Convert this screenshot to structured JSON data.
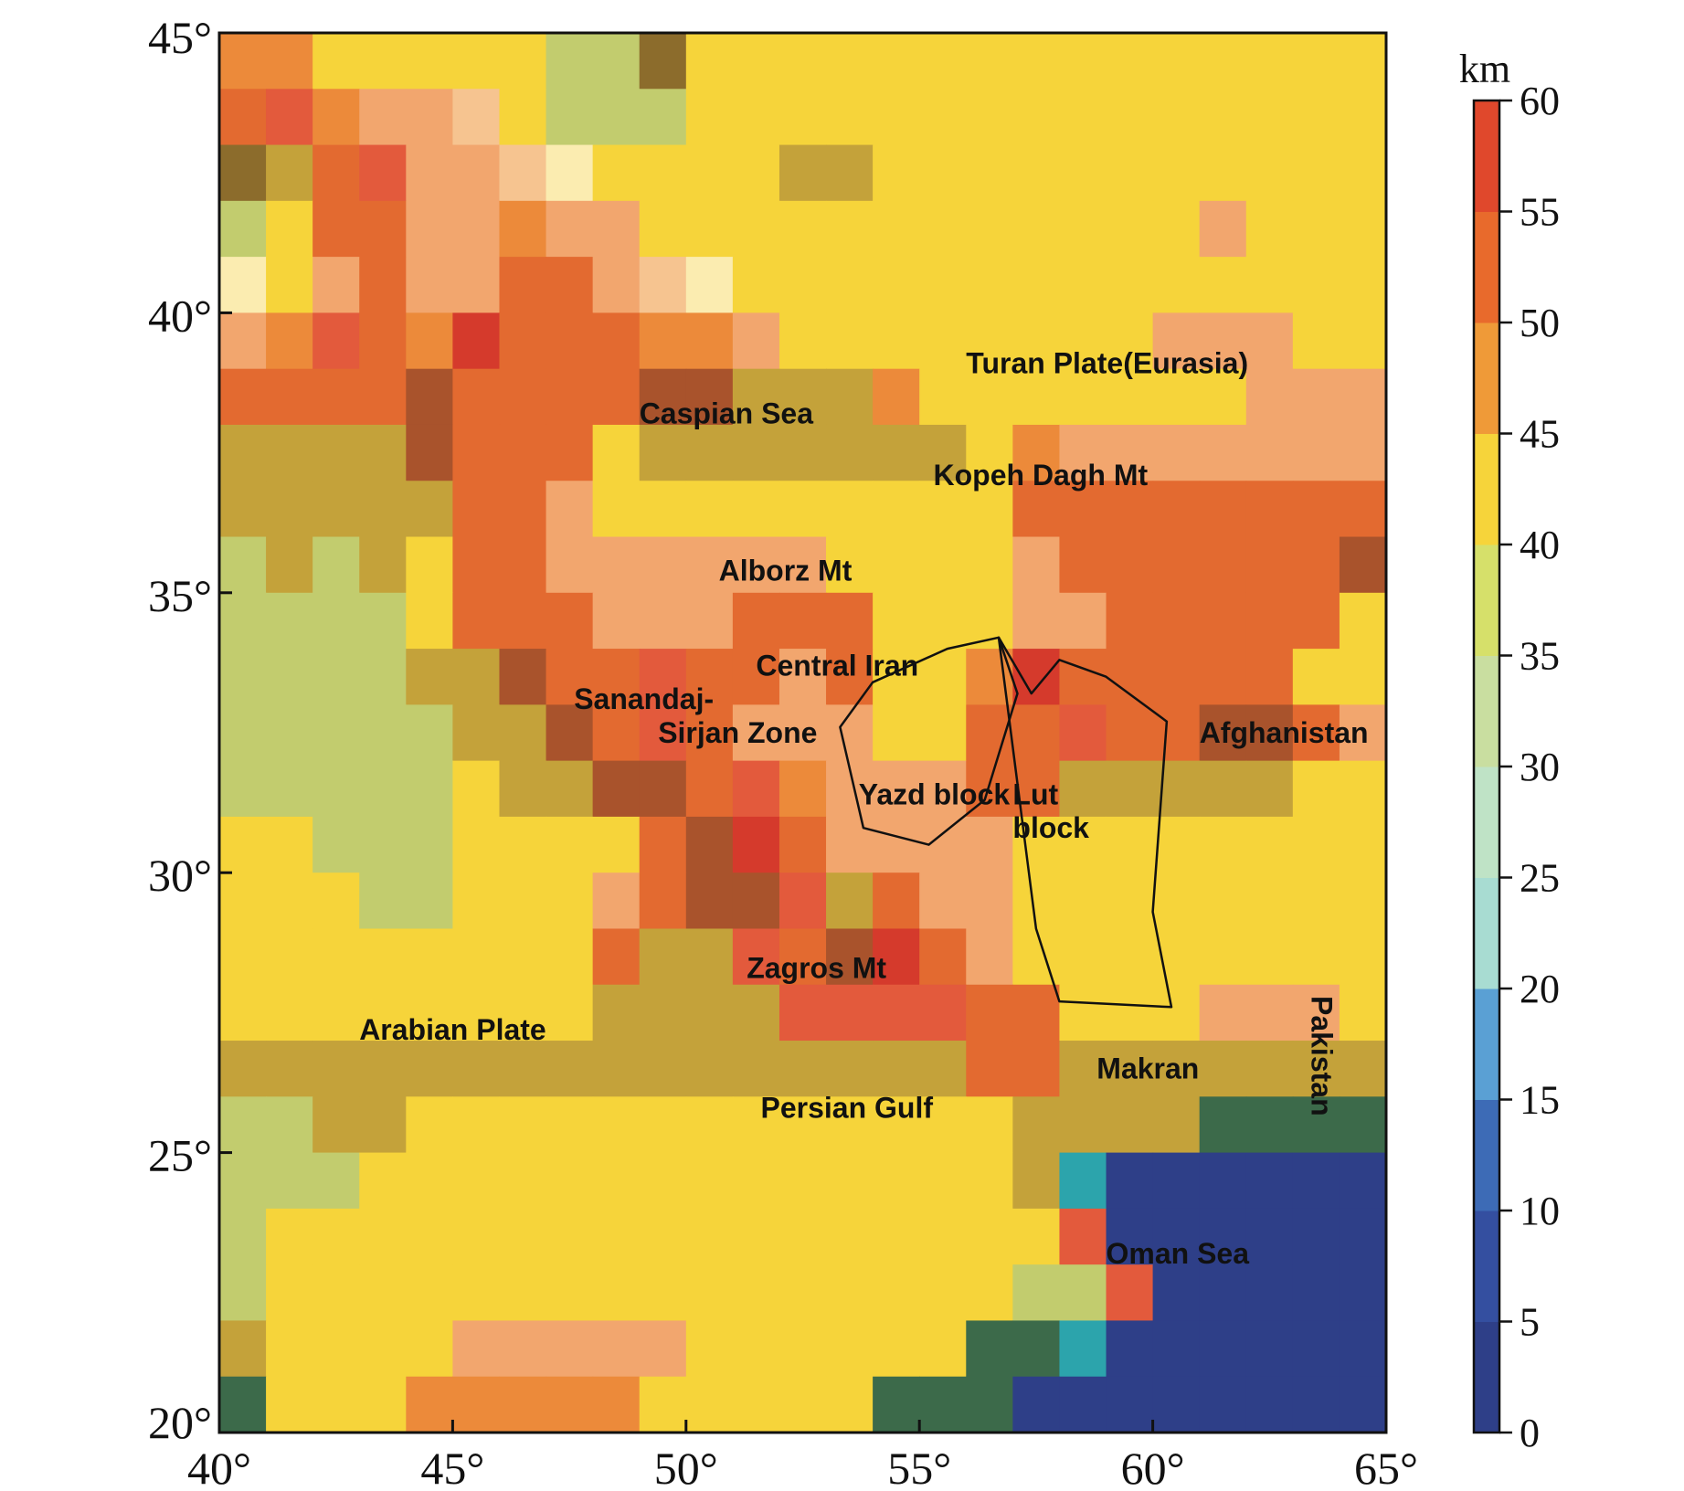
{
  "map": {
    "lon_range": [
      40,
      65
    ],
    "lat_range": [
      20,
      45
    ],
    "cell_deg": 1,
    "x_ticks": [
      {
        "value": 40,
        "label": "40°"
      },
      {
        "value": 45,
        "label": "45°"
      },
      {
        "value": 50,
        "label": "50°"
      },
      {
        "value": 55,
        "label": "55°"
      },
      {
        "value": 60,
        "label": "60°"
      },
      {
        "value": 65,
        "label": "65°"
      }
    ],
    "y_ticks": [
      {
        "value": 45,
        "label": "45°"
      },
      {
        "value": 40,
        "label": "40°"
      },
      {
        "value": 35,
        "label": "35°"
      },
      {
        "value": 30,
        "label": "30°"
      },
      {
        "value": 25,
        "label": "25°"
      },
      {
        "value": 20,
        "label": "20°"
      }
    ],
    "grid_rows_north_to_south": [
      "OOYYYYYGGBYYYYYYYYYYYYYYY",
      "RLOPPSYGGGYYYYYYYYYYYYYYY",
      "BDRLPPSWYYYYDDYYYYYYYYYYY",
      "GYRRPPOPPYYYYYYYYYYYYPYYY",
      "WYPRPPRRPSWYYYYYYYYYYYYYY",
      "POLROERRROOPYYYYYYYYPPPYY",
      "RRRRMRRRRMMDDDOYYYYYYYPPP",
      "DDDDMRRRYDDDDDDDYOPPPPPPP",
      "DDDDDRRPYYYYYYYYYRRRRRRRR",
      "GDGDYRRPPPPPPYYYYPRRRRRRM",
      "GGGGYRRRPPPRRRYYYPPRRRRRY",
      "GGGGDDMRRLRRPRYYOERRRRRYY",
      "GGGGGDDMRLRPPPYYRRLRRMMRP",
      "GGGGGYDDMMRLOPPPRRDDDDDYY",
      "YYGGGYYYYRMERPPPPYYYYYYYY",
      "YYYGGYYYPRMMLDRPPYYYYYYYY",
      "YYYYYYYYRDDLRMERPYYYYYYYY",
      "YYYYYYYYDDDDLLLLRRYYYPPPY",
      "DDDDDDDDDDDDDDDDRRDDDDDDD",
      "GGDDYYYYYYYYYYYYYDDDDCCCC",
      "GGGYYYYYYYYYYYYYYDTNNNNNN",
      "GYYYYYYYYYYYYYYYYYLNNNNNN",
      "GYYYYYYYYYYYYYYYYGGLNNNNN",
      "DYYYYPPPPPYYYYYYCCTNNNNNN",
      "CYYYOOOOOYYYYYCCCNNNNNNNN"
    ],
    "cell_palette": {
      "Y": "#f6d43a",
      "O": "#ec8a3a",
      "R": "#e36a30",
      "P": "#f2a66e",
      "S": "#f6c490",
      "W": "#fbecb0",
      "G": "#c2cc6e",
      "D": "#c4a23a",
      "B": "#8c6c2c",
      "M": "#a9532c",
      "L": "#e35a3c",
      "E": "#d53a2c",
      "C": "#3c6a4a",
      "T": "#2ca4ac",
      "N": "#2e3f88"
    },
    "polygons": [
      [
        [
          53.3,
          32.6
        ],
        [
          54.0,
          33.4
        ],
        [
          55.6,
          34.0
        ],
        [
          56.7,
          34.2
        ],
        [
          57.1,
          33.2
        ],
        [
          56.4,
          31.3
        ],
        [
          55.2,
          30.5
        ],
        [
          53.8,
          30.8
        ]
      ],
      [
        [
          56.7,
          34.2
        ],
        [
          57.4,
          33.2
        ],
        [
          58.0,
          33.8
        ],
        [
          59.0,
          33.5
        ],
        [
          60.3,
          32.7
        ],
        [
          60.0,
          29.3
        ],
        [
          60.4,
          27.6
        ],
        [
          58.0,
          27.7
        ],
        [
          57.5,
          29.0
        ]
      ]
    ],
    "labels": [
      {
        "text": "Turan Plate(Eurasia)",
        "lon": 56.0,
        "lat": 39.1
      },
      {
        "text": "Caspian Sea",
        "lon": 49.0,
        "lat": 38.2
      },
      {
        "text": "Kopeh Dagh Mt",
        "lon": 55.3,
        "lat": 37.1
      },
      {
        "text": "Alborz Mt",
        "lon": 50.7,
        "lat": 35.4
      },
      {
        "text": "Central Iran",
        "lon": 51.5,
        "lat": 33.7
      },
      {
        "text": "Sanandaj-",
        "lon": 47.6,
        "lat": 33.1
      },
      {
        "text": "Sirjan Zone",
        "lon": 49.4,
        "lat": 32.5
      },
      {
        "text": "Yazd block",
        "lon": 53.7,
        "lat": 31.4
      },
      {
        "text": "Lut",
        "lon": 57.0,
        "lat": 31.4
      },
      {
        "text": "block",
        "lon": 57.0,
        "lat": 30.8
      },
      {
        "text": "Afghanistan",
        "lon": 61.0,
        "lat": 32.5
      },
      {
        "text": "Zagros Mt",
        "lon": 51.3,
        "lat": 28.3
      },
      {
        "text": "Arabian Plate",
        "lon": 43.0,
        "lat": 27.2
      },
      {
        "text": "Makran",
        "lon": 58.8,
        "lat": 26.5
      },
      {
        "text": "Persian Gulf",
        "lon": 51.6,
        "lat": 25.8
      },
      {
        "text": "Oman Sea",
        "lon": 59.0,
        "lat": 23.2
      }
    ],
    "rotated_labels": [
      {
        "text": "Pakistan",
        "lon": 63.4,
        "lat": 27.8
      }
    ]
  },
  "colorbar": {
    "unit": "km",
    "min": 0,
    "max": 60,
    "ticks": [
      "0",
      "5",
      "10",
      "15",
      "20",
      "25",
      "30",
      "35",
      "40",
      "45",
      "50",
      "55",
      "60"
    ],
    "bins": [
      {
        "from": 0,
        "to": 5,
        "color": "#2e3f88"
      },
      {
        "from": 5,
        "to": 10,
        "color": "#344fa0"
      },
      {
        "from": 10,
        "to": 15,
        "color": "#3d6bb6"
      },
      {
        "from": 15,
        "to": 20,
        "color": "#5aa0d4"
      },
      {
        "from": 20,
        "to": 25,
        "color": "#a8dcd2"
      },
      {
        "from": 25,
        "to": 30,
        "color": "#bfe3c6"
      },
      {
        "from": 30,
        "to": 35,
        "color": "#c9dea0"
      },
      {
        "from": 35,
        "to": 40,
        "color": "#d6e06a"
      },
      {
        "from": 40,
        "to": 45,
        "color": "#f6d43a"
      },
      {
        "from": 45,
        "to": 50,
        "color": "#ef9a38"
      },
      {
        "from": 50,
        "to": 55,
        "color": "#e86a2c"
      },
      {
        "from": 55,
        "to": 60,
        "color": "#e0482c"
      }
    ]
  }
}
